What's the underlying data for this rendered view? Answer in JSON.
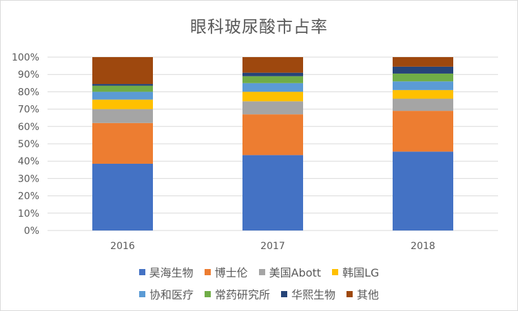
{
  "chart_data": {
    "type": "bar",
    "stacked": true,
    "title": "眼科玻尿酸市占率",
    "categories": [
      "2016",
      "2017",
      "2018"
    ],
    "ylim": [
      0,
      100
    ],
    "y_ticks": [
      "0%",
      "10%",
      "20%",
      "30%",
      "40%",
      "50%",
      "60%",
      "70%",
      "80%",
      "90%",
      "100%"
    ],
    "grid": true,
    "legend_position": "bottom",
    "series": [
      {
        "name": "昊海生物",
        "color": "#4472C4",
        "values": [
          38.5,
          43.5,
          45.5
        ]
      },
      {
        "name": "博士伦",
        "color": "#ED7D31",
        "values": [
          23.5,
          23.5,
          23.5
        ]
      },
      {
        "name": "美国Abott",
        "color": "#A5A5A5",
        "values": [
          8,
          7.5,
          7
        ]
      },
      {
        "name": "韩国LG",
        "color": "#FFC000",
        "values": [
          5.5,
          5.5,
          5
        ]
      },
      {
        "name": "协和医疗",
        "color": "#5B9BD5",
        "values": [
          4.5,
          5,
          5
        ]
      },
      {
        "name": "常药研究所",
        "color": "#70AD47",
        "values": [
          3.5,
          4,
          4.5
        ]
      },
      {
        "name": "华熙生物",
        "color": "#264478",
        "values": [
          1,
          2,
          4
        ]
      },
      {
        "name": "其他",
        "color": "#9E480E",
        "values": [
          15.5,
          9,
          5.5
        ]
      }
    ]
  }
}
